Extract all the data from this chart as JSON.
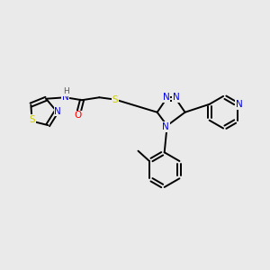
{
  "background_color": "#eaeaea",
  "atom_colors": {
    "N": "#0000ee",
    "S": "#cccc00",
    "O": "#ff0000",
    "C": "#000000",
    "H": "#555555"
  },
  "bond_color": "#000000",
  "bond_width": 1.4,
  "figsize": [
    3.0,
    3.0
  ],
  "dpi": 100
}
